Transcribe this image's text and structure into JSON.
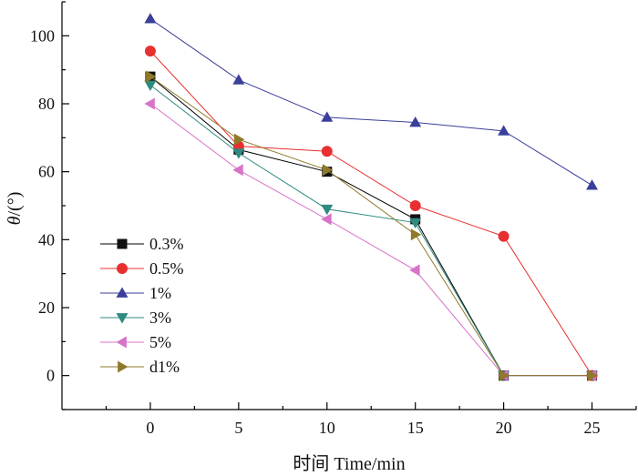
{
  "chart_data": {
    "type": "line",
    "title": "",
    "xlabel": "时间 Time/min",
    "ylabel_italic": "θ",
    "ylabel_rest": "/(°)",
    "xlim": [
      -5,
      27.5
    ],
    "ylim": [
      -10,
      110
    ],
    "xticks": [
      0,
      5,
      10,
      15,
      20,
      25
    ],
    "yticks": [
      0,
      20,
      40,
      60,
      80,
      100
    ],
    "grid": false,
    "legend_position": "lower-left",
    "series": [
      {
        "name": "0.3%",
        "marker": "square",
        "color": "#000000",
        "markerColor": "#111111",
        "x": [
          0,
          5,
          10,
          15,
          20,
          25
        ],
        "values": [
          88,
          66.5,
          60,
          46,
          0,
          0
        ]
      },
      {
        "name": "0.5%",
        "marker": "circle",
        "color": "#e83030",
        "markerColor": "#e83030",
        "x": [
          0,
          5,
          10,
          15,
          20,
          25
        ],
        "values": [
          95.5,
          67.5,
          66,
          50,
          41,
          0
        ]
      },
      {
        "name": "1%",
        "marker": "triangle-up",
        "color": "#3a3f9a",
        "markerColor": "#3a3f9a",
        "x": [
          0,
          5,
          10,
          15,
          20,
          25
        ],
        "values": [
          105,
          87,
          76,
          74.5,
          72,
          56
        ]
      },
      {
        "name": "3%",
        "marker": "triangle-down",
        "color": "#2f8a80",
        "markerColor": "#2f8a80",
        "x": [
          0,
          5,
          10,
          15,
          20,
          25
        ],
        "values": [
          85.5,
          65.5,
          49,
          45,
          0,
          0
        ]
      },
      {
        "name": "5%",
        "marker": "triangle-left",
        "color": "#d873c8",
        "markerColor": "#d873c8",
        "x": [
          0,
          5,
          10,
          15,
          20,
          25
        ],
        "values": [
          80,
          60.5,
          46,
          31,
          0,
          0
        ]
      },
      {
        "name": "d1%",
        "marker": "triangle-right",
        "color": "#8e7a2a",
        "markerColor": "#8e7a2a",
        "x": [
          0,
          5,
          10,
          15,
          20,
          25
        ],
        "values": [
          88,
          69.5,
          60.5,
          41.5,
          0,
          0
        ]
      }
    ]
  }
}
